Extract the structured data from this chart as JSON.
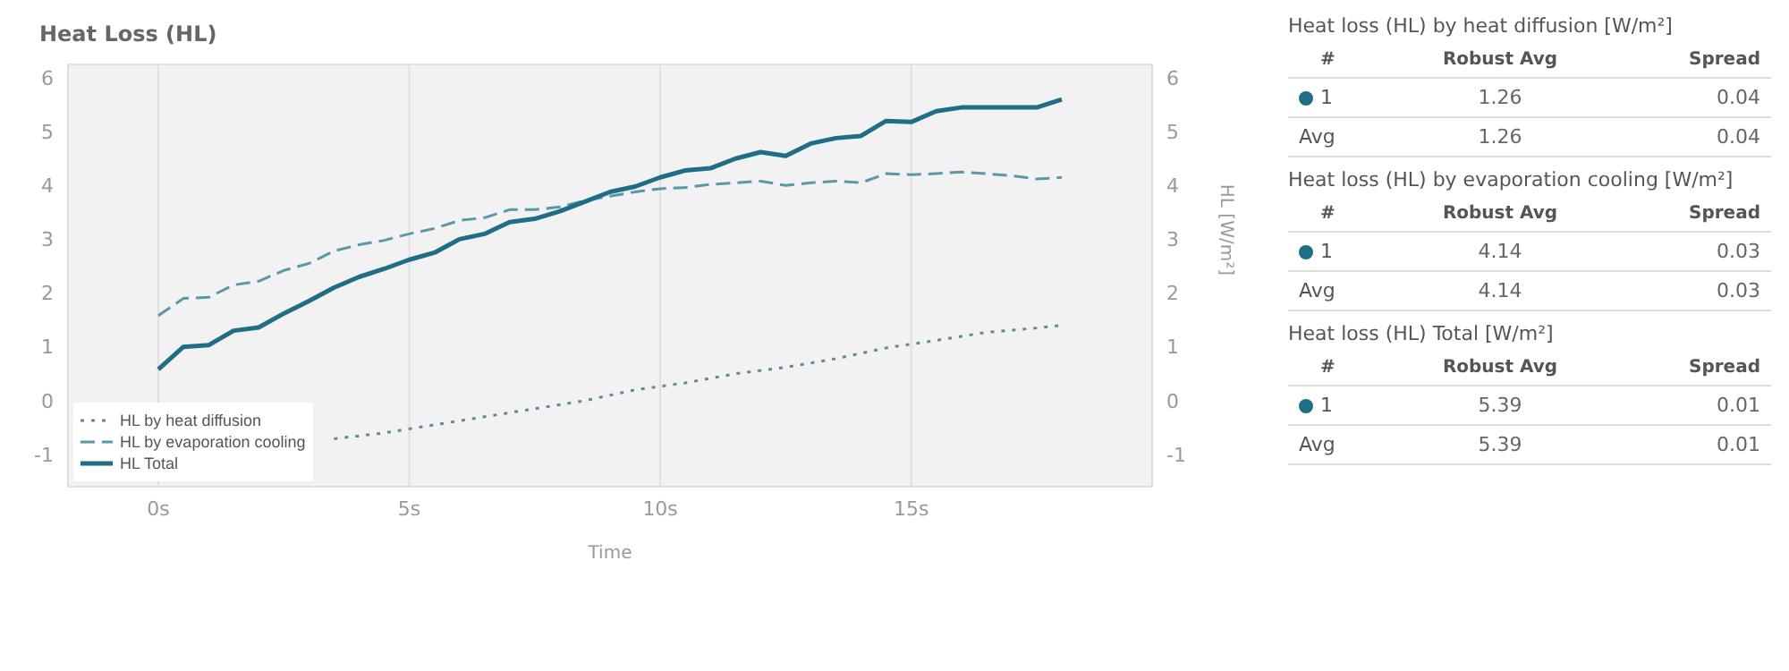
{
  "chart_data": [
    {
      "type": "line",
      "title": "Heat Loss (HL)",
      "xlabel": "Time",
      "y2label": "HL [W/m²]",
      "xlim": [
        -1.8,
        19.8
      ],
      "xticks": [
        {
          "value": 0,
          "label": "0s"
        },
        {
          "value": 5,
          "label": "5s"
        },
        {
          "value": 10,
          "label": "10s"
        },
        {
          "value": 15,
          "label": "15s"
        }
      ],
      "ylim": [
        -1.6,
        6.25
      ],
      "yticks": [
        -1,
        0,
        1,
        2,
        3,
        4,
        5,
        6
      ],
      "y2lim": [
        -1.6,
        6.25
      ],
      "y2ticks": [
        -1,
        0,
        1,
        2,
        3,
        4,
        5,
        6
      ],
      "grid": true,
      "legend": "bottom left",
      "series": [
        {
          "name": "HL by heat diffusion",
          "color": "#5f8a9a",
          "line_style": "dotted",
          "x": [
            3.5,
            4.5,
            5.5,
            6.5,
            7.5,
            8.5,
            9.5,
            10.5,
            11.5,
            12.5,
            13.5,
            14.5,
            15.5,
            16.5,
            17.5,
            18
          ],
          "values": [
            -0.71,
            -0.6,
            -0.45,
            -0.3,
            -0.15,
            0.0,
            0.2,
            0.33,
            0.5,
            0.62,
            0.78,
            0.98,
            1.12,
            1.27,
            1.35,
            1.4
          ]
        },
        {
          "name": "HL by evaporation cooling",
          "color": "#5a97a8",
          "line_style": "dashed",
          "x": [
            0,
            0.5,
            1,
            1.5,
            2,
            2.5,
            3,
            3.5,
            4,
            4.5,
            5,
            5.5,
            6,
            6.5,
            7,
            7.5,
            8,
            8.5,
            9,
            9.5,
            10,
            10.5,
            11,
            11.5,
            12,
            12.5,
            13,
            13.5,
            14,
            14.5,
            15,
            15.5,
            16,
            16.5,
            17,
            17.5,
            18
          ],
          "values": [
            1.58,
            1.9,
            1.92,
            2.15,
            2.22,
            2.42,
            2.55,
            2.78,
            2.9,
            2.98,
            3.1,
            3.2,
            3.35,
            3.4,
            3.55,
            3.55,
            3.6,
            3.72,
            3.8,
            3.88,
            3.94,
            3.96,
            4.02,
            4.05,
            4.08,
            4.0,
            4.05,
            4.08,
            4.05,
            4.22,
            4.2,
            4.22,
            4.25,
            4.22,
            4.18,
            4.12,
            4.15
          ]
        },
        {
          "name": "HL Total",
          "color": "#1f6e86",
          "line_style": "solid",
          "x": [
            0,
            0.5,
            1,
            1.5,
            2,
            2.5,
            3,
            3.5,
            4,
            4.5,
            5,
            5.5,
            6,
            6.5,
            7,
            7.5,
            8,
            8.5,
            9,
            9.5,
            10,
            10.5,
            11,
            11.5,
            12,
            12.5,
            13,
            13.5,
            14,
            14.5,
            15,
            15.5,
            16,
            16.5,
            17,
            17.5,
            18
          ],
          "values": [
            0.58,
            1.0,
            1.03,
            1.3,
            1.36,
            1.62,
            1.85,
            2.1,
            2.3,
            2.45,
            2.62,
            2.75,
            3.0,
            3.1,
            3.32,
            3.38,
            3.52,
            3.7,
            3.88,
            3.98,
            4.15,
            4.28,
            4.32,
            4.5,
            4.62,
            4.55,
            4.78,
            4.88,
            4.92,
            5.2,
            5.18,
            5.38,
            5.45,
            5.45,
            5.45,
            5.45,
            5.6
          ]
        }
      ]
    },
    {
      "type": "other",
      "title": "Heat loss (HL) by heat diffusion [W/m²]",
      "annotations": [
        "#"
      ],
      "categories": [
        "1",
        "Avg"
      ],
      "colors": [
        "#1f6e86",
        null
      ],
      "data_labels": true,
      "series": [
        {
          "name": "Robust Avg",
          "color": "#666666",
          "values": [
            1.26,
            1.26
          ]
        },
        {
          "name": "Spread",
          "color": "#666666",
          "values": [
            0.04,
            0.04
          ]
        }
      ]
    },
    {
      "type": "other",
      "title": "Heat loss (HL) by evaporation cooling [W/m²]",
      "annotations": [
        "#"
      ],
      "categories": [
        "1",
        "Avg"
      ],
      "colors": [
        "#1f6e86",
        null
      ],
      "data_labels": true,
      "series": [
        {
          "name": "Robust Avg",
          "color": "#666666",
          "values": [
            4.14,
            4.14
          ]
        },
        {
          "name": "Spread",
          "color": "#666666",
          "values": [
            0.03,
            0.03
          ]
        }
      ]
    },
    {
      "type": "other",
      "title": "Heat loss (HL) Total [W/m²]",
      "annotations": [
        "#"
      ],
      "categories": [
        "1",
        "Avg"
      ],
      "colors": [
        "#1f6e86",
        null
      ],
      "data_labels": true,
      "series": [
        {
          "name": "Robust Avg",
          "color": "#666666",
          "values": [
            5.39,
            5.39
          ]
        },
        {
          "name": "Spread",
          "color": "#666666",
          "values": [
            0.01,
            0.01
          ]
        }
      ]
    }
  ]
}
